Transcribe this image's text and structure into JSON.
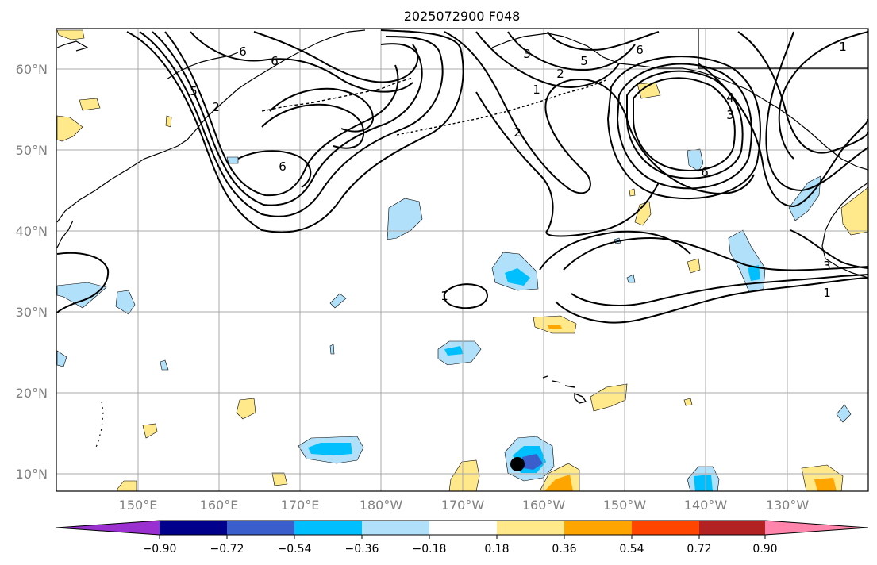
{
  "title": "2025072900 F048",
  "lat_labels": [
    "60°N",
    "50°N",
    "40°N",
    "30°N",
    "20°N",
    "10°N"
  ],
  "lon_labels": [
    "150°E",
    "160°E",
    "170°E",
    "180°W",
    "170°W",
    "160°W",
    "150°W",
    "140°W",
    "130°W"
  ],
  "colorbar": {
    "tick_labels": [
      "−0.90",
      "−0.72",
      "−0.54",
      "−0.36",
      "−0.18",
      "0.18",
      "0.36",
      "0.54",
      "0.72",
      "0.90"
    ],
    "colors": [
      "#9b30d0",
      "#00008b",
      "#3a5fcd",
      "#00bfff",
      "#b0e0fa",
      "#ffffff",
      "#ffe98a",
      "#ffa500",
      "#ff4500",
      "#b22222",
      "#ff85ad"
    ]
  },
  "colors": {
    "contour": "#000000",
    "grid": "#a9a9a9",
    "marker": "#000000"
  },
  "contour_labels": [
    "6",
    "5",
    "6",
    "2",
    "6",
    "3",
    "5",
    "6",
    "2",
    "1",
    "2",
    "1",
    "4",
    "3",
    "6",
    "1",
    "3",
    "1"
  ]
}
